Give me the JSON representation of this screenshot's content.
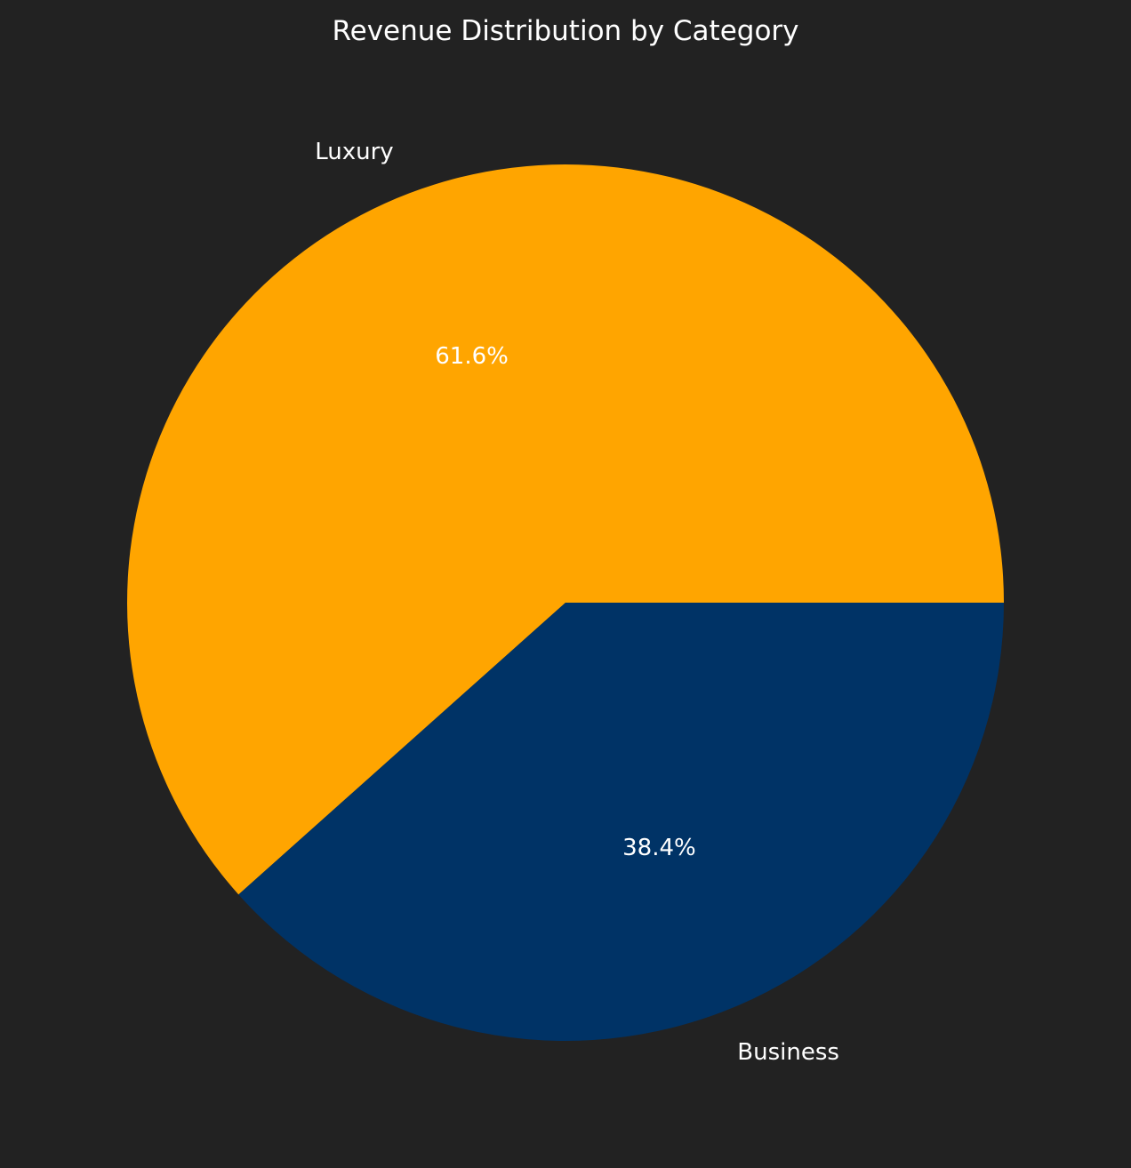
{
  "chart_data": {
    "type": "pie",
    "title": "Revenue Distribution by Category",
    "start_angle_deg": 0,
    "direction": "counterclockwise",
    "slices": [
      {
        "label": "Luxury",
        "value": 61.6,
        "pct_label": "61.6%",
        "color": "#FFA500"
      },
      {
        "label": "Business",
        "value": 38.4,
        "pct_label": "38.4%",
        "color": "#003366"
      }
    ]
  },
  "background_color": "#222222"
}
